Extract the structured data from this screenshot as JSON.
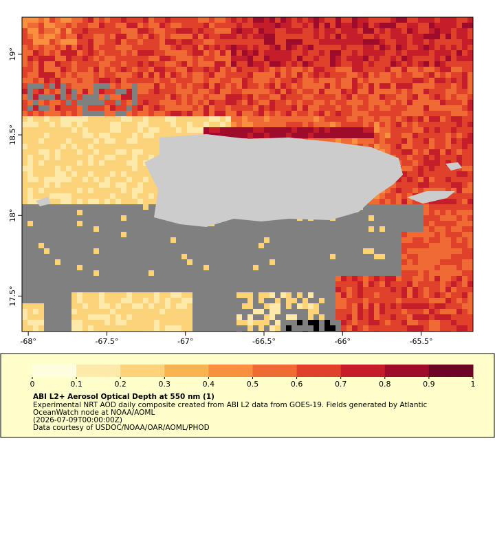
{
  "map": {
    "xlim": [
      -68.04,
      -65.17
    ],
    "ylim": [
      17.28,
      19.23
    ],
    "xticks": [
      {
        "value": -68,
        "label": "-68°"
      },
      {
        "value": -67.5,
        "label": "-67.5°"
      },
      {
        "value": -67,
        "label": "-67°"
      },
      {
        "value": -66.5,
        "label": "-66.5°"
      },
      {
        "value": -66,
        "label": "-66°"
      },
      {
        "value": -65.5,
        "label": "-65.5°"
      }
    ],
    "yticks": [
      {
        "value": 17.5,
        "label": "17.5°"
      },
      {
        "value": 18,
        "label": "18°"
      },
      {
        "value": 18.5,
        "label": "18.5°"
      },
      {
        "value": 19,
        "label": "19°"
      }
    ]
  },
  "colorbar": {
    "clim": [
      0,
      1
    ],
    "ticks": [
      0,
      0.1,
      0.2,
      0.3,
      0.4,
      0.5,
      0.6,
      0.7,
      0.8,
      0.9,
      1
    ],
    "colors": [
      "#fffde0",
      "#fde9a9",
      "#fcd27a",
      "#f9b44f",
      "#f7913f",
      "#f06a33",
      "#e0412b",
      "#c61d2a",
      "#9e0b2b",
      "#6e0524"
    ]
  },
  "caption": {
    "title": "ABI L2+ Aerosol Optical Depth at 550 nm (1)",
    "lines": [
      "Experimental NRT AOD daily composite created from ABI L2 data from GOES-19. Fields generated by Atlantic",
      "OceanWatch node at NOAA/AOML",
      "(2026-07-09T00:00:00Z)",
      "Data courtesy of USDOC/NOAA/OAR/AOML/PHOD"
    ]
  }
}
